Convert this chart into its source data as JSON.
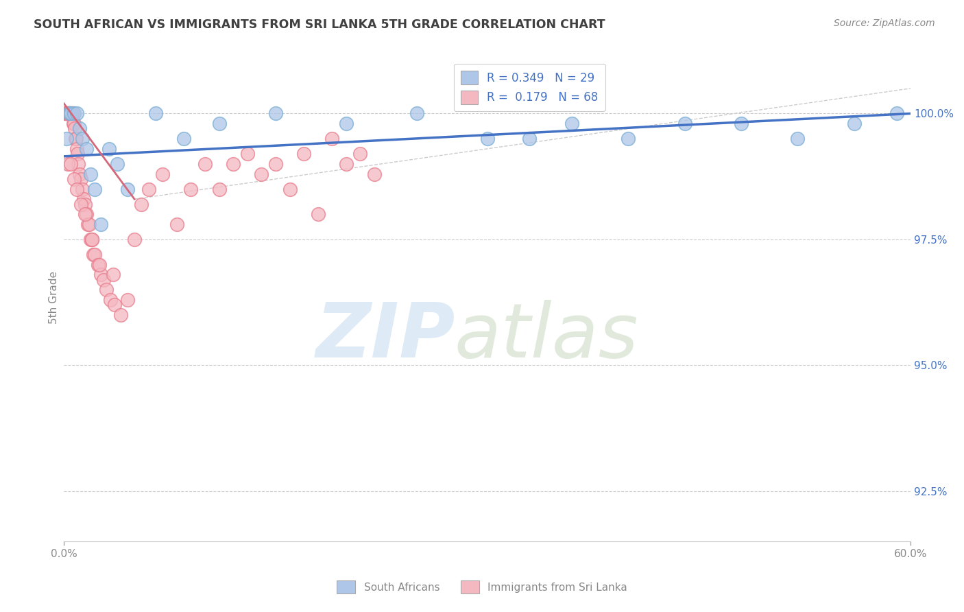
{
  "title": "SOUTH AFRICAN VS IMMIGRANTS FROM SRI LANKA 5TH GRADE CORRELATION CHART",
  "source": "Source: ZipAtlas.com",
  "ylabel": "5th Grade",
  "yticks": [
    92.5,
    95.0,
    97.5,
    100.0
  ],
  "ytick_labels": [
    "92.5%",
    "95.0%",
    "97.5%",
    "100.0%"
  ],
  "xlim": [
    0.0,
    60.0
  ],
  "ylim": [
    91.5,
    101.2
  ],
  "legend_entries": [
    {
      "label": "R = 0.349   N = 29",
      "color": "#aec6e8"
    },
    {
      "label": "R =  0.179   N = 68",
      "color": "#f4b8c1"
    }
  ],
  "south_africans": {
    "color": "#aec6e8",
    "edge_color": "#7aadd4",
    "trend_color": "#4472c4",
    "x": [
      0.2,
      0.4,
      0.5,
      0.7,
      0.9,
      1.1,
      1.3,
      1.6,
      1.9,
      2.2,
      2.6,
      3.2,
      3.8,
      4.5,
      6.5,
      8.5,
      11.0,
      15.0,
      20.0,
      25.0,
      30.0,
      33.0,
      36.0,
      40.0,
      44.0,
      48.0,
      52.0,
      56.0,
      59.0
    ],
    "y": [
      99.5,
      100.0,
      100.0,
      100.0,
      100.0,
      99.7,
      99.5,
      99.3,
      98.8,
      98.5,
      97.8,
      99.3,
      99.0,
      98.5,
      100.0,
      99.5,
      99.8,
      100.0,
      99.8,
      100.0,
      99.5,
      99.5,
      99.8,
      99.5,
      99.8,
      99.8,
      99.5,
      99.8,
      100.0
    ]
  },
  "sri_lanka": {
    "color": "#f4b8c1",
    "edge_color": "#e87d8d",
    "trend_color": "#d4687a",
    "x": [
      0.05,
      0.1,
      0.15,
      0.2,
      0.25,
      0.3,
      0.35,
      0.4,
      0.45,
      0.5,
      0.55,
      0.6,
      0.65,
      0.7,
      0.75,
      0.8,
      0.85,
      0.9,
      0.95,
      1.0,
      1.1,
      1.2,
      1.3,
      1.4,
      1.5,
      1.6,
      1.7,
      1.8,
      1.9,
      2.0,
      2.1,
      2.2,
      2.4,
      2.6,
      2.8,
      3.0,
      3.3,
      3.6,
      4.0,
      4.5,
      5.0,
      5.5,
      6.0,
      7.0,
      8.0,
      9.0,
      10.0,
      11.0,
      12.0,
      13.0,
      14.0,
      15.0,
      16.0,
      17.0,
      18.0,
      19.0,
      20.0,
      21.0,
      22.0,
      0.3,
      0.5,
      0.7,
      0.9,
      1.2,
      1.5,
      2.0,
      2.5,
      3.5
    ],
    "y": [
      100.0,
      100.0,
      100.0,
      100.0,
      100.0,
      100.0,
      100.0,
      100.0,
      100.0,
      100.0,
      100.0,
      100.0,
      99.8,
      99.8,
      99.7,
      99.5,
      99.5,
      99.3,
      99.2,
      99.0,
      98.8,
      98.7,
      98.5,
      98.3,
      98.2,
      98.0,
      97.8,
      97.8,
      97.5,
      97.5,
      97.2,
      97.2,
      97.0,
      96.8,
      96.7,
      96.5,
      96.3,
      96.2,
      96.0,
      96.3,
      97.5,
      98.2,
      98.5,
      98.8,
      97.8,
      98.5,
      99.0,
      98.5,
      99.0,
      99.2,
      98.8,
      99.0,
      98.5,
      99.2,
      98.0,
      99.5,
      99.0,
      99.2,
      98.8,
      99.0,
      99.0,
      98.7,
      98.5,
      98.2,
      98.0,
      97.5,
      97.0,
      96.8
    ]
  },
  "grid_color": "#cccccc",
  "background_color": "#ffffff",
  "title_color": "#404040",
  "axis_color": "#888888"
}
